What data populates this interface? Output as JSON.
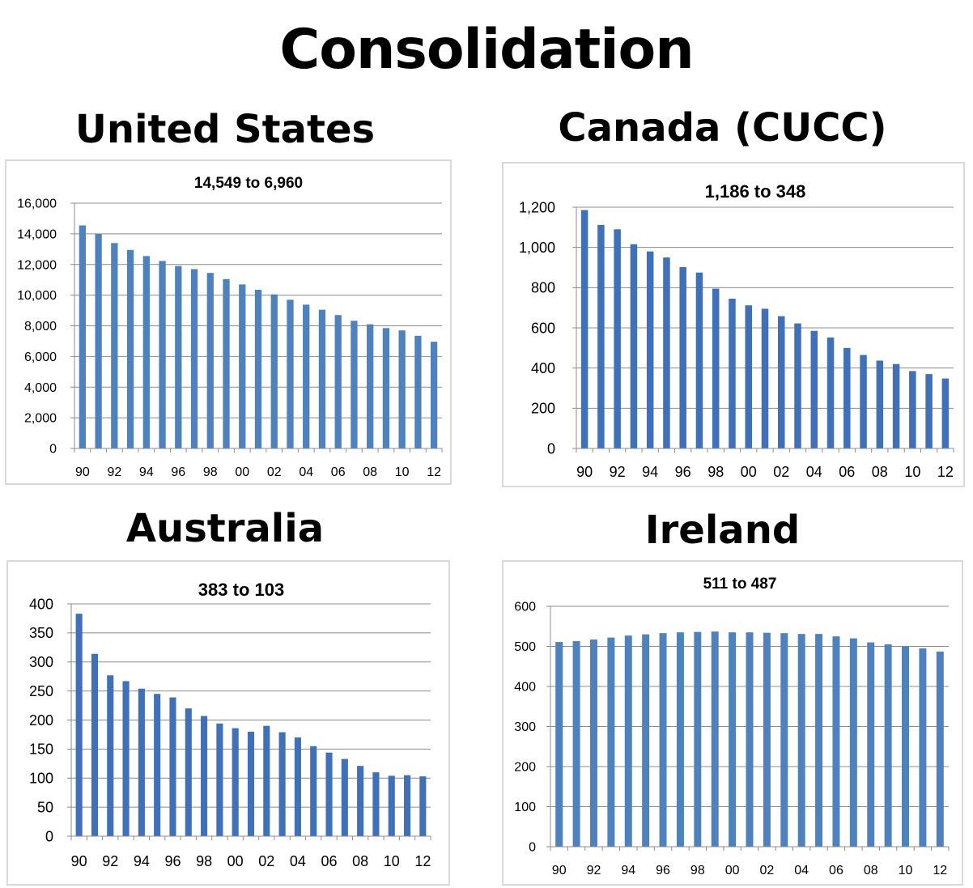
{
  "title": "Consolidation",
  "panels": [
    {
      "country": "United States"
    },
    {
      "country": "Canada (CUCC)"
    },
    {
      "country": "Australia"
    },
    {
      "country": "Ireland"
    }
  ],
  "chart_data": [
    {
      "type": "bar",
      "title": "14,549 to 6,960",
      "categories": [
        "90",
        "91",
        "92",
        "93",
        "94",
        "95",
        "96",
        "97",
        "98",
        "99",
        "00",
        "01",
        "02",
        "03",
        "04",
        "05",
        "06",
        "07",
        "08",
        "09",
        "10",
        "11",
        "12"
      ],
      "x_tick_labels": [
        "90",
        "92",
        "94",
        "96",
        "98",
        "00",
        "02",
        "04",
        "06",
        "08",
        "10",
        "12"
      ],
      "y_tick_labels": [
        "0",
        "2,000",
        "4,000",
        "6,000",
        "8,000",
        "10,000",
        "12,000",
        "14,000",
        "16,000"
      ],
      "values": [
        14549,
        14000,
        13400,
        12950,
        12550,
        12230,
        11900,
        11700,
        11450,
        11050,
        10700,
        10350,
        10050,
        9700,
        9380,
        9050,
        8700,
        8330,
        8100,
        7850,
        7700,
        7350,
        6960
      ],
      "ylim": [
        0,
        16000
      ],
      "grid": true,
      "color": "#4f81bd"
    },
    {
      "type": "bar",
      "title": "1,186 to 348",
      "categories": [
        "90",
        "91",
        "92",
        "93",
        "94",
        "95",
        "96",
        "97",
        "98",
        "99",
        "00",
        "01",
        "02",
        "03",
        "04",
        "05",
        "06",
        "07",
        "08",
        "09",
        "10",
        "11",
        "12"
      ],
      "x_tick_labels": [
        "90",
        "92",
        "94",
        "96",
        "98",
        "00",
        "02",
        "04",
        "06",
        "08",
        "10",
        "12"
      ],
      "y_tick_labels": [
        "0",
        "200",
        "400",
        "600",
        "800",
        "1,000",
        "1,200"
      ],
      "values": [
        1186,
        1112,
        1090,
        1016,
        980,
        950,
        902,
        875,
        795,
        745,
        712,
        695,
        658,
        622,
        585,
        552,
        500,
        465,
        437,
        420,
        385,
        370,
        348
      ],
      "ylim": [
        0,
        1200
      ],
      "grid": true,
      "color": "#4070b8"
    },
    {
      "type": "bar",
      "title": "383 to 103",
      "categories": [
        "90",
        "91",
        "92",
        "93",
        "94",
        "95",
        "96",
        "97",
        "98",
        "99",
        "00",
        "01",
        "02",
        "03",
        "04",
        "05",
        "06",
        "07",
        "08",
        "09",
        "10",
        "11",
        "12"
      ],
      "x_tick_labels": [
        "90",
        "92",
        "94",
        "96",
        "98",
        "00",
        "02",
        "04",
        "06",
        "08",
        "10",
        "12"
      ],
      "y_tick_labels": [
        "0",
        "50",
        "100",
        "150",
        "200",
        "250",
        "300",
        "350",
        "400"
      ],
      "values": [
        383,
        314,
        277,
        267,
        254,
        245,
        239,
        220,
        207,
        194,
        186,
        180,
        190,
        179,
        170,
        155,
        144,
        133,
        121,
        110,
        104,
        105,
        103
      ],
      "ylim": [
        0,
        400
      ],
      "grid": true,
      "color": "#4070b8"
    },
    {
      "type": "bar",
      "title": "511 to 487",
      "categories": [
        "90",
        "91",
        "92",
        "93",
        "94",
        "95",
        "96",
        "97",
        "98",
        "99",
        "00",
        "01",
        "02",
        "03",
        "04",
        "05",
        "06",
        "07",
        "08",
        "09",
        "10",
        "11",
        "12"
      ],
      "x_tick_labels": [
        "90",
        "92",
        "94",
        "96",
        "98",
        "00",
        "02",
        "04",
        "06",
        "08",
        "10",
        "12"
      ],
      "y_tick_labels": [
        "0",
        "100",
        "200",
        "300",
        "400",
        "500",
        "600"
      ],
      "values": [
        511,
        513,
        517,
        522,
        527,
        530,
        533,
        535,
        536,
        537,
        535,
        535,
        534,
        533,
        531,
        531,
        525,
        520,
        510,
        505,
        500,
        495,
        487
      ],
      "ylim": [
        0,
        600
      ],
      "grid": true,
      "color": "#4f81bd"
    }
  ]
}
